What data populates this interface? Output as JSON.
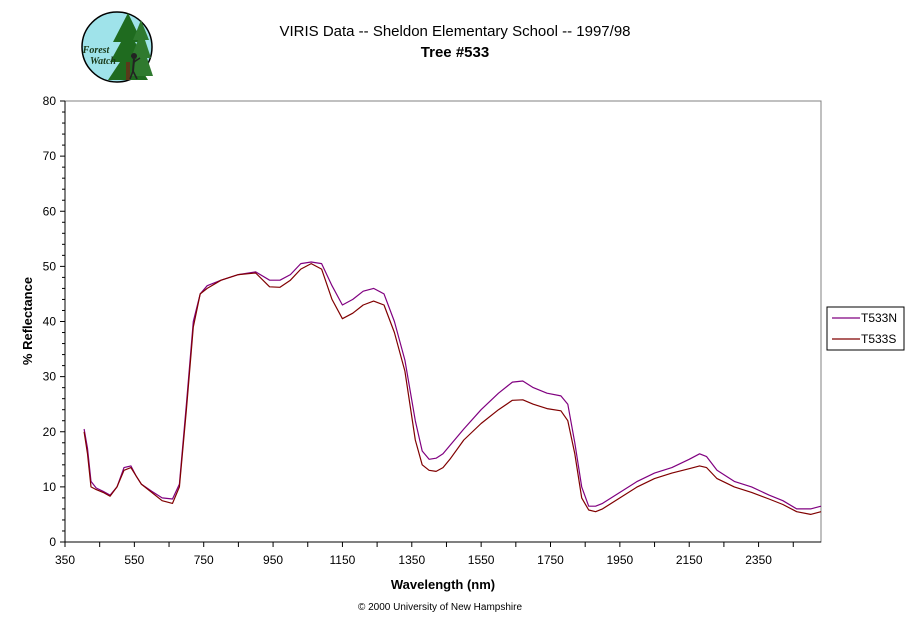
{
  "logo": {
    "line1": "Forest",
    "line2": "Watch"
  },
  "chart_data": {
    "type": "line",
    "title": "VIRIS Data -- Sheldon Elementary School -- 1997/98",
    "subtitle": "Tree #533",
    "xlabel": "Wavelength (nm)",
    "ylabel": "% Reflectance",
    "xlim": [
      350,
      2530
    ],
    "ylim": [
      0,
      80
    ],
    "xticks": [
      350,
      550,
      750,
      950,
      1150,
      1350,
      1550,
      1750,
      1950,
      2150,
      2350
    ],
    "yticks": [
      0,
      10,
      20,
      30,
      40,
      50,
      60,
      70,
      80
    ],
    "grid": false,
    "legend_position": "right",
    "series": [
      {
        "name": "T533N",
        "color": "#800080",
        "x": [
          405,
          415,
          425,
          440,
          460,
          480,
          500,
          520,
          540,
          555,
          570,
          600,
          630,
          660,
          680,
          700,
          720,
          740,
          760,
          800,
          850,
          900,
          940,
          970,
          1000,
          1030,
          1060,
          1090,
          1120,
          1150,
          1180,
          1210,
          1240,
          1270,
          1300,
          1330,
          1360,
          1380,
          1400,
          1420,
          1440,
          1460,
          1500,
          1550,
          1600,
          1640,
          1670,
          1700,
          1740,
          1780,
          1800,
          1820,
          1840,
          1860,
          1880,
          1900,
          1950,
          2000,
          2050,
          2100,
          2150,
          2180,
          2200,
          2230,
          2280,
          2330,
          2380,
          2420,
          2460,
          2500,
          2530
        ],
        "y": [
          20.5,
          17,
          11,
          9.8,
          9.2,
          8.5,
          10,
          13.5,
          13.8,
          12,
          10.5,
          9.2,
          8,
          7.8,
          10.5,
          25,
          40,
          45,
          46.5,
          47.5,
          48.5,
          49,
          47.5,
          47.5,
          48.5,
          50.5,
          50.8,
          50.5,
          46.5,
          43,
          44,
          45.5,
          46,
          45,
          40,
          33,
          22,
          16.5,
          15,
          15.2,
          16,
          17.5,
          20.5,
          24,
          27,
          29,
          29.2,
          28,
          27,
          26.5,
          25,
          18,
          10,
          6.5,
          6.5,
          7,
          9,
          11,
          12.5,
          13.5,
          15,
          16,
          15.5,
          13,
          11,
          10,
          8.5,
          7.5,
          6,
          6,
          6.5
        ]
      },
      {
        "name": "T533S",
        "color": "#800000",
        "x": [
          405,
          415,
          425,
          440,
          460,
          480,
          500,
          520,
          540,
          555,
          570,
          600,
          630,
          660,
          680,
          700,
          720,
          740,
          760,
          800,
          850,
          900,
          940,
          970,
          1000,
          1030,
          1060,
          1090,
          1120,
          1150,
          1180,
          1210,
          1240,
          1270,
          1300,
          1330,
          1360,
          1380,
          1400,
          1420,
          1440,
          1460,
          1500,
          1550,
          1600,
          1640,
          1670,
          1700,
          1740,
          1780,
          1800,
          1820,
          1840,
          1860,
          1880,
          1900,
          1950,
          2000,
          2050,
          2100,
          2150,
          2180,
          2200,
          2230,
          2280,
          2330,
          2380,
          2420,
          2460,
          2500,
          2530
        ],
        "y": [
          20,
          16,
          10,
          9.5,
          9,
          8.3,
          10,
          13,
          13.5,
          12,
          10.5,
          9,
          7.5,
          7,
          10,
          24,
          39,
          45,
          46,
          47.5,
          48.5,
          48.8,
          46.3,
          46.2,
          47.5,
          49.5,
          50.5,
          49.5,
          44,
          40.5,
          41.5,
          43,
          43.7,
          43,
          38,
          31,
          18.5,
          14,
          13,
          12.8,
          13.5,
          15,
          18.5,
          21.5,
          24,
          25.7,
          25.8,
          25,
          24.2,
          23.8,
          22,
          16,
          8,
          5.8,
          5.5,
          6,
          8,
          10,
          11.5,
          12.5,
          13.3,
          13.8,
          13.5,
          11.5,
          10,
          9,
          7.8,
          6.8,
          5.5,
          5,
          5.5
        ]
      }
    ]
  },
  "copyright": "© 2000 University of New Hampshire"
}
